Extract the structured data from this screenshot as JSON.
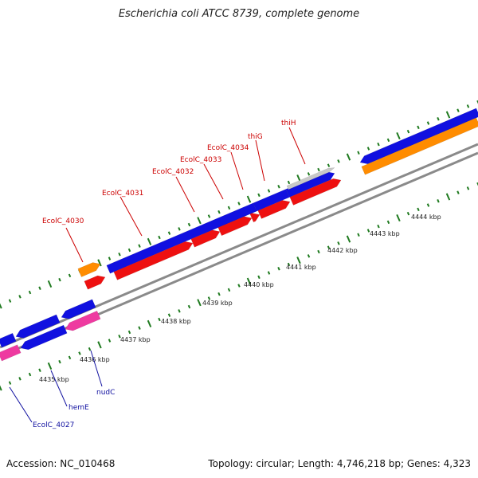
{
  "title": "Escherichia coli ATCC 8739, complete genome",
  "footer": {
    "accession": "Accession: NC_010468",
    "summary": "Topology: circular; Length: 4,746,218 bp; Genes: 4,323"
  },
  "colors": {
    "forward_cds": "#1010e0",
    "reverse_cds": "#ee1010",
    "rna": "#ff8c00",
    "pseudo": "#ee3aa0",
    "other": "#c8c8c8",
    "backbone": "#8a8a8a",
    "tick": "#1f7a1f",
    "label_red": "#cc0000",
    "label_blue": "#1010a0"
  },
  "kbp_labels": [
    "4435 kbp",
    "4436 kbp",
    "4437 kbp",
    "4438 kbp",
    "4439 kbp",
    "4440 kbp",
    "4441 kbp",
    "4442 kbp",
    "4443 kbp",
    "4444 kbp"
  ],
  "top_genes": [
    "EcolC_4030",
    "EcolC_4031",
    "EcolC_4032",
    "EcolC_4033",
    "EcolC_4034",
    "thiG",
    "thiH"
  ],
  "bottom_genes": [
    "nudC",
    "hemE",
    "EcolC_4027"
  ]
}
